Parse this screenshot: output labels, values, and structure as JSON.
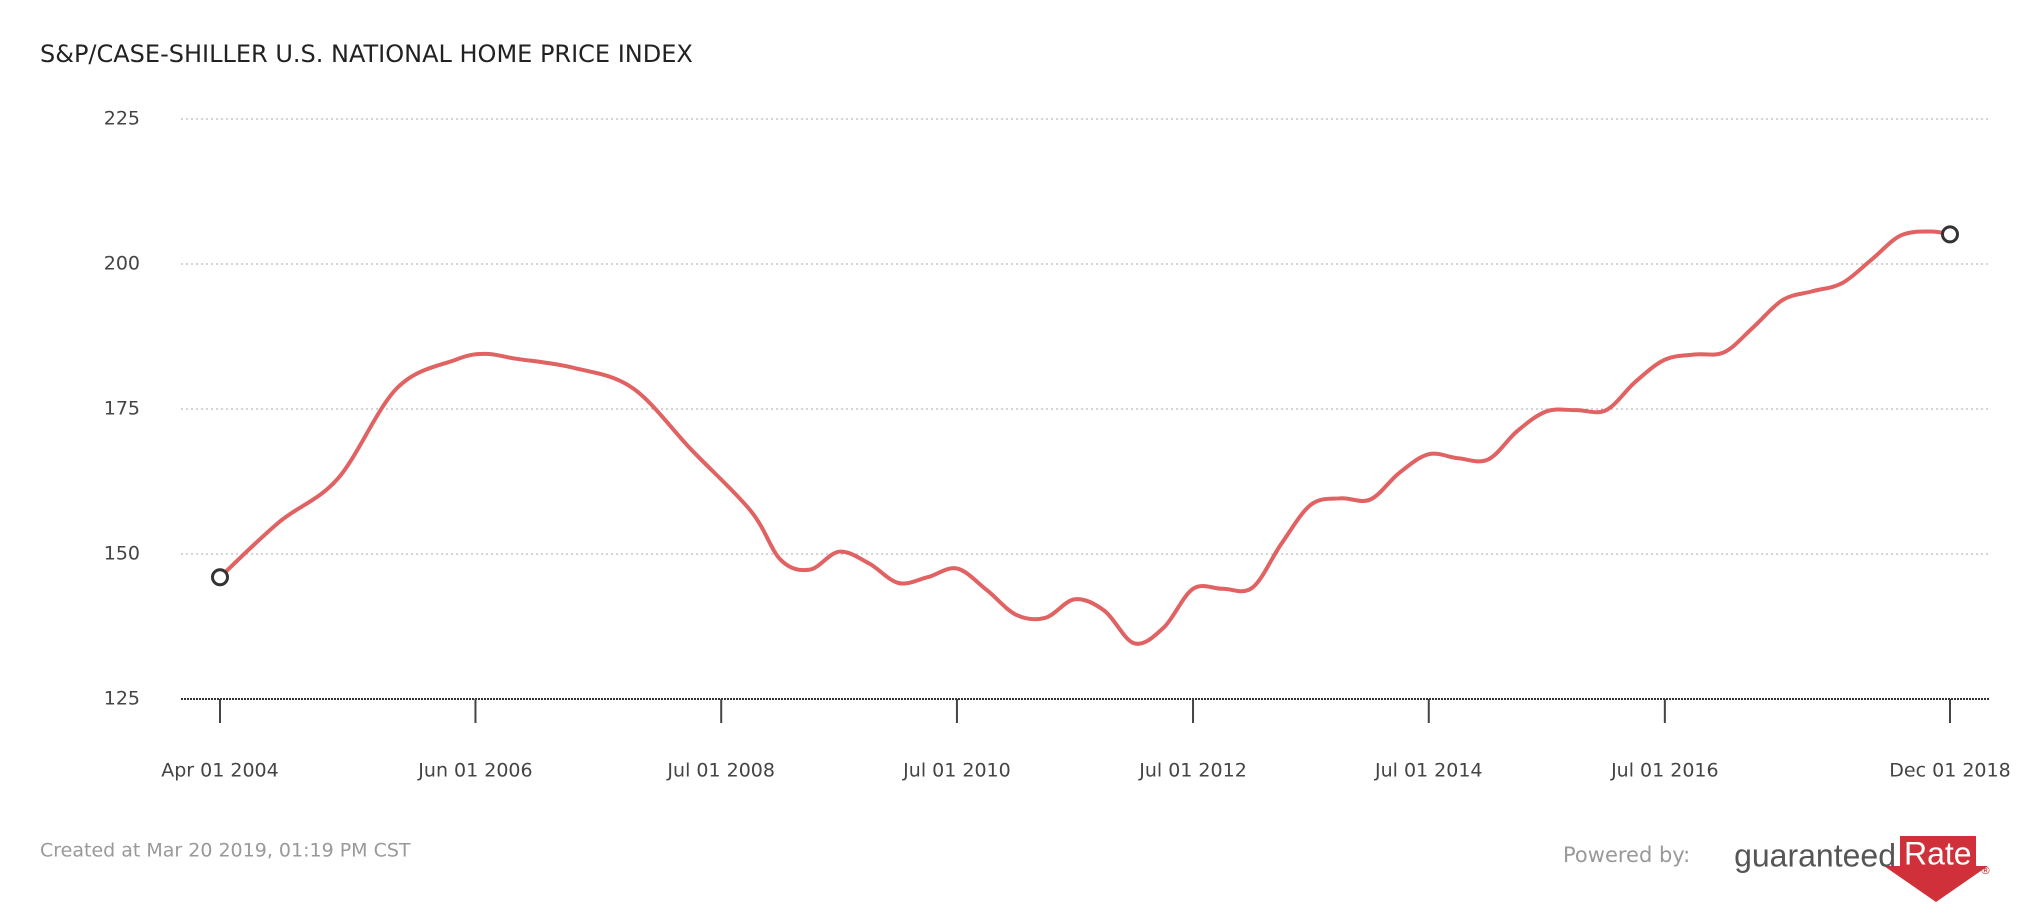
{
  "chart_data": {
    "type": "line",
    "title": "S&P/CASE-SHILLER U.S. NATIONAL HOME PRICE INDEX",
    "x": [
      "2004-04-01",
      "2004-10-01",
      "2005-04-01",
      "2005-10-01",
      "2006-04-01",
      "2006-07-01",
      "2006-10-01",
      "2007-04-01",
      "2007-10-01",
      "2008-04-01",
      "2008-10-01",
      "2009-01-01",
      "2009-04-01",
      "2009-07-01",
      "2009-10-01",
      "2010-01-01",
      "2010-04-01",
      "2010-07-01",
      "2010-10-01",
      "2011-01-01",
      "2011-04-01",
      "2011-07-01",
      "2011-10-01",
      "2012-01-01",
      "2012-04-01",
      "2012-07-01",
      "2012-10-01",
      "2013-01-01",
      "2013-04-01",
      "2013-07-01",
      "2013-10-01",
      "2014-01-01",
      "2014-04-01",
      "2014-07-01",
      "2014-10-01",
      "2015-01-01",
      "2015-04-01",
      "2015-07-01",
      "2015-10-01",
      "2016-01-01",
      "2016-04-01",
      "2016-07-01",
      "2016-10-01",
      "2017-01-01",
      "2017-04-01",
      "2017-07-01",
      "2017-10-01",
      "2018-01-01",
      "2018-04-01",
      "2018-07-01",
      "2018-10-01",
      "2018-12-01"
    ],
    "series": [
      {
        "color": "#e06262",
        "values": [
          146,
          155.5,
          163,
          178.6,
          183.5,
          184.5,
          183.7,
          182.1,
          178.6,
          167.9,
          157.4,
          149,
          147.3,
          150.4,
          148.4,
          145,
          146,
          147.5,
          143.8,
          139.5,
          139,
          142.2,
          140.2,
          134.6,
          137.3,
          144,
          144,
          144.2,
          151.8,
          158.5,
          159.6,
          159.4,
          164,
          167.2,
          166.5,
          166.3,
          171.2,
          174.6,
          174.8,
          174.8,
          179.7,
          183.5,
          184.4,
          184.8,
          189.1,
          193.8,
          195.3,
          196.7,
          200.7,
          204.9,
          205.6,
          205.1
        ]
      }
    ],
    "xlim": [
      "2004-04-01",
      "2018-12-01"
    ],
    "xticks": [
      {
        "value": "2004-04-01",
        "label": "Apr 01 2004"
      },
      {
        "value": "2006-06-01",
        "label": "Jun 01 2006"
      },
      {
        "value": "2008-07-01",
        "label": "Jul 01 2008"
      },
      {
        "value": "2010-07-01",
        "label": "Jul 01 2010"
      },
      {
        "value": "2012-07-01",
        "label": "Jul 01 2012"
      },
      {
        "value": "2014-07-01",
        "label": "Jul 01 2014"
      },
      {
        "value": "2016-07-01",
        "label": "Jul 01 2016"
      },
      {
        "value": "2018-12-01",
        "label": "Dec 01 2018"
      }
    ],
    "ylim": [
      125,
      225
    ],
    "yticks": [
      125,
      150,
      175,
      200,
      225
    ],
    "grid": true
  },
  "footer": {
    "created": "Created at Mar 20 2019, 01:19 PM CST",
    "powered": "Powered by:",
    "logo": {
      "left": "guaranteed",
      "right": "Rate",
      "mark": "®"
    }
  }
}
